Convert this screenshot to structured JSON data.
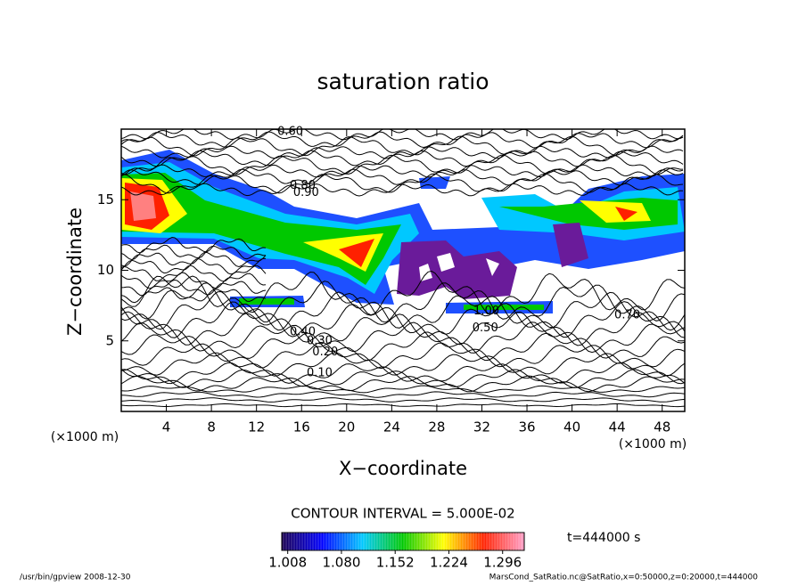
{
  "chart_data": {
    "type": "contour",
    "title": "saturation ratio",
    "x_label": "X−coordinate",
    "y_label": "Z−coordinate",
    "unit_label": "(×1000 m)",
    "xlim": [
      0,
      50
    ],
    "ylim": [
      0,
      20
    ],
    "xticks": [
      4,
      8,
      12,
      16,
      20,
      24,
      28,
      32,
      36,
      40,
      44,
      48
    ],
    "yticks": [
      5,
      10,
      15
    ],
    "contour_labels": [
      {
        "value": 0.1,
        "label": "0.10",
        "x": 17.6,
        "z": 2.7
      },
      {
        "value": 0.2,
        "label": "0.20",
        "x": 18.1,
        "z": 4.2
      },
      {
        "value": 0.3,
        "label": "0.30",
        "x": 17.6,
        "z": 5.0
      },
      {
        "value": 0.4,
        "label": "0.40",
        "x": 16.1,
        "z": 5.6
      },
      {
        "value": 0.5,
        "label": "0.50",
        "x": 32.3,
        "z": 5.9
      },
      {
        "value": 0.7,
        "label": "0.70",
        "x": 44.9,
        "z": 6.8
      },
      {
        "value": 1,
        "label": "1.00",
        "x": 32.4,
        "z": 7.1
      },
      {
        "value": 0.8,
        "label": "0.80",
        "x": 16.1,
        "z": 16.0
      },
      {
        "value": 0.9,
        "label": "0.90",
        "x": 16.4,
        "z": 15.5
      },
      {
        "value": 0.6,
        "label": "0.60",
        "x": 15.0,
        "z": 19.8
      }
    ],
    "contour_interval_label": "CONTOUR INTERVAL = 5.000E-02",
    "colorbar": {
      "clim": [
        1.0,
        1.325
      ],
      "ticks": [
        1.008,
        {
          "value": 1.08,
          "label": "1.080"
        },
        1.152,
        1.224,
        1.296
      ],
      "colors": [
        "#1a0050",
        "#0000ff",
        "#00c8ff",
        "#00c800",
        "#ffff00",
        "#ff2000",
        "#ffa0c8"
      ]
    },
    "time_label": "t=444000 s",
    "footer_left": "/usr/bin/gpview   2008-12-30",
    "footer_right": "MarsCond_SatRatio.nc@SatRatio,x=0:50000,z=0:20000,t=444000"
  }
}
